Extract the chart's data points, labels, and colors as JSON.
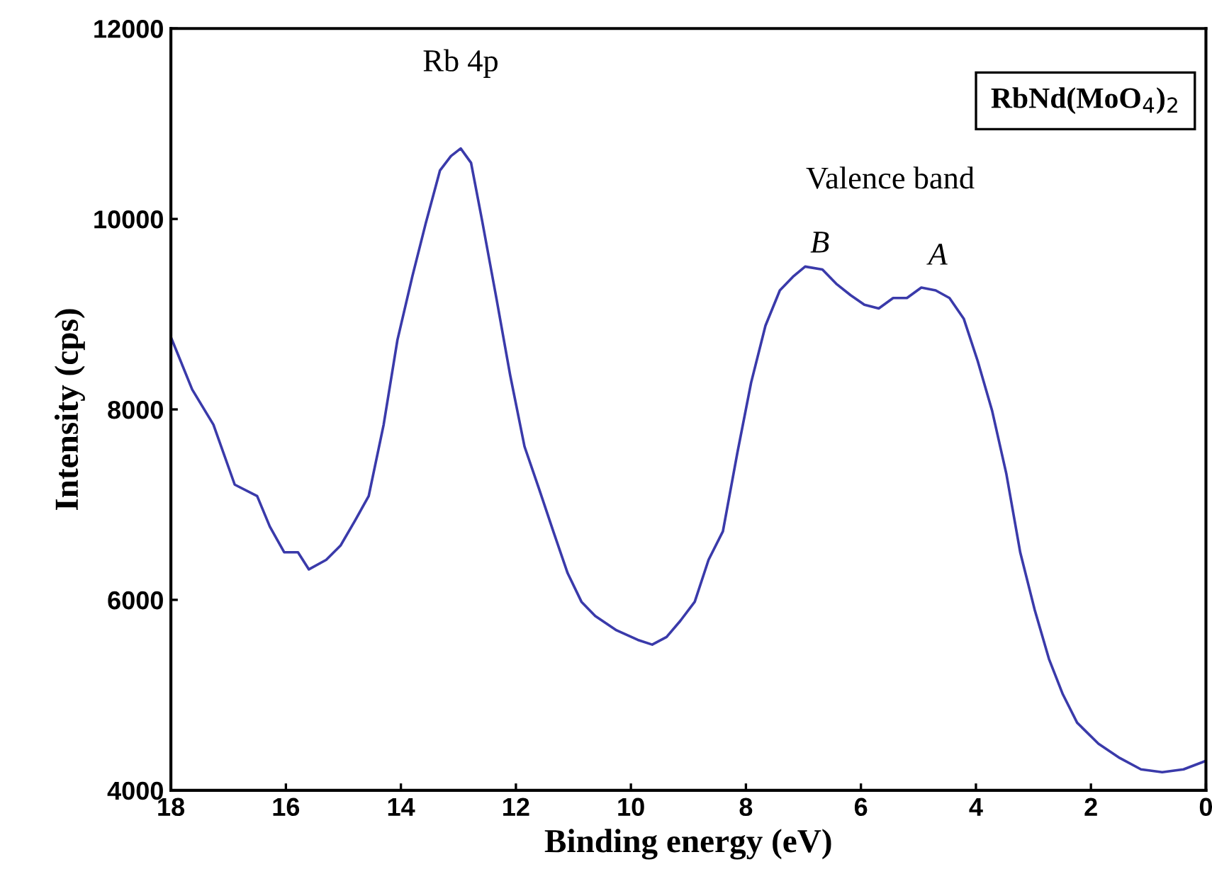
{
  "chart_data": {
    "type": "line",
    "xlabel": "Binding energy (eV)",
    "ylabel": "Intensity (cps)",
    "xlim": [
      18,
      0
    ],
    "ylim": [
      4000,
      12000
    ],
    "xticks": [
      18,
      16,
      14,
      12,
      10,
      8,
      6,
      4,
      2,
      0
    ],
    "yticks": [
      4000,
      6000,
      8000,
      10000,
      12000
    ],
    "grid": false,
    "legend": false,
    "marker": "none",
    "line_style": "solid",
    "x": [
      18,
      17.63,
      17.26,
      16.89,
      16.5,
      16.28,
      16.03,
      15.79,
      15.6,
      15.3,
      15.05,
      14.8,
      14.56,
      14.3,
      14.06,
      13.8,
      13.57,
      13.32,
      13.13,
      12.96,
      12.78,
      12.59,
      12.34,
      12.1,
      11.85,
      11.6,
      11.35,
      11.1,
      10.86,
      10.62,
      10.25,
      9.88,
      9.63,
      9.38,
      9.14,
      8.89,
      8.65,
      8.4,
      8.15,
      7.91,
      7.66,
      7.41,
      7.17,
      6.97,
      6.67,
      6.43,
      6.18,
      5.94,
      5.69,
      5.44,
      5.2,
      4.95,
      4.7,
      4.46,
      4.21,
      3.97,
      3.72,
      3.47,
      3.23,
      2.98,
      2.73,
      2.49,
      2.24,
      1.87,
      1.5,
      1.13,
      0.76,
      0.39,
      0
    ],
    "series": [
      {
        "color": "#3a3aaa",
        "values": [
          8760,
          8210,
          7840,
          7210,
          7090,
          6770,
          6500,
          6500,
          6320,
          6420,
          6570,
          6830,
          7090,
          7840,
          8730,
          9400,
          9950,
          10510,
          10660,
          10740,
          10590,
          9990,
          9170,
          8360,
          7610,
          7170,
          6720,
          6280,
          5980,
          5830,
          5680,
          5580,
          5530,
          5610,
          5780,
          5980,
          6420,
          6720,
          7540,
          8280,
          8880,
          9250,
          9400,
          9500,
          9470,
          9320,
          9200,
          9100,
          9060,
          9170,
          9170,
          9280,
          9250,
          9170,
          8950,
          8510,
          7990,
          7320,
          6500,
          5900,
          5380,
          5010,
          4710,
          4490,
          4340,
          4220,
          4190,
          4220,
          4310
        ]
      }
    ],
    "annotations": [
      "Rb 4p",
      "Valence band",
      "B",
      "A",
      "RbNd(MoO$_{4}$)$_{2}$"
    ]
  }
}
